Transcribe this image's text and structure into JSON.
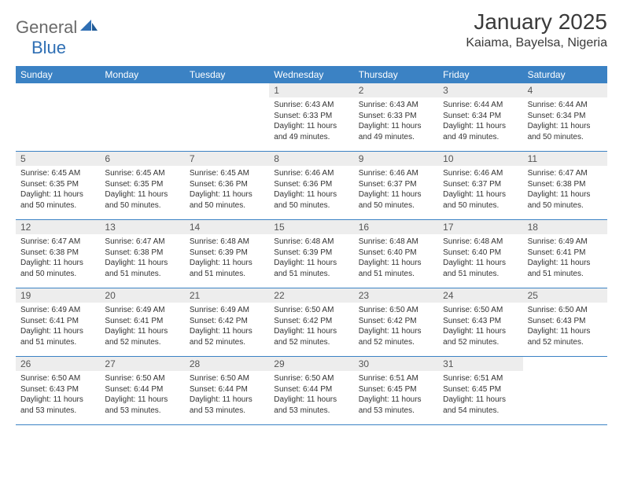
{
  "logo": {
    "general": "General",
    "blue": "Blue"
  },
  "title": "January 2025",
  "location": "Kaiama, Bayelsa, Nigeria",
  "colors": {
    "header_bg": "#3b82c4",
    "header_text": "#ffffff",
    "daynum_bg": "#ededed",
    "text": "#333333",
    "logo_gray": "#6a6a6a",
    "logo_blue": "#2f6fb4"
  },
  "weekdays": [
    "Sunday",
    "Monday",
    "Tuesday",
    "Wednesday",
    "Thursday",
    "Friday",
    "Saturday"
  ],
  "weeks": [
    [
      {
        "day": "",
        "lines": []
      },
      {
        "day": "",
        "lines": []
      },
      {
        "day": "",
        "lines": []
      },
      {
        "day": "1",
        "lines": [
          "Sunrise: 6:43 AM",
          "Sunset: 6:33 PM",
          "Daylight: 11 hours and 49 minutes."
        ]
      },
      {
        "day": "2",
        "lines": [
          "Sunrise: 6:43 AM",
          "Sunset: 6:33 PM",
          "Daylight: 11 hours and 49 minutes."
        ]
      },
      {
        "day": "3",
        "lines": [
          "Sunrise: 6:44 AM",
          "Sunset: 6:34 PM",
          "Daylight: 11 hours and 49 minutes."
        ]
      },
      {
        "day": "4",
        "lines": [
          "Sunrise: 6:44 AM",
          "Sunset: 6:34 PM",
          "Daylight: 11 hours and 50 minutes."
        ]
      }
    ],
    [
      {
        "day": "5",
        "lines": [
          "Sunrise: 6:45 AM",
          "Sunset: 6:35 PM",
          "Daylight: 11 hours and 50 minutes."
        ]
      },
      {
        "day": "6",
        "lines": [
          "Sunrise: 6:45 AM",
          "Sunset: 6:35 PM",
          "Daylight: 11 hours and 50 minutes."
        ]
      },
      {
        "day": "7",
        "lines": [
          "Sunrise: 6:45 AM",
          "Sunset: 6:36 PM",
          "Daylight: 11 hours and 50 minutes."
        ]
      },
      {
        "day": "8",
        "lines": [
          "Sunrise: 6:46 AM",
          "Sunset: 6:36 PM",
          "Daylight: 11 hours and 50 minutes."
        ]
      },
      {
        "day": "9",
        "lines": [
          "Sunrise: 6:46 AM",
          "Sunset: 6:37 PM",
          "Daylight: 11 hours and 50 minutes."
        ]
      },
      {
        "day": "10",
        "lines": [
          "Sunrise: 6:46 AM",
          "Sunset: 6:37 PM",
          "Daylight: 11 hours and 50 minutes."
        ]
      },
      {
        "day": "11",
        "lines": [
          "Sunrise: 6:47 AM",
          "Sunset: 6:38 PM",
          "Daylight: 11 hours and 50 minutes."
        ]
      }
    ],
    [
      {
        "day": "12",
        "lines": [
          "Sunrise: 6:47 AM",
          "Sunset: 6:38 PM",
          "Daylight: 11 hours and 50 minutes."
        ]
      },
      {
        "day": "13",
        "lines": [
          "Sunrise: 6:47 AM",
          "Sunset: 6:38 PM",
          "Daylight: 11 hours and 51 minutes."
        ]
      },
      {
        "day": "14",
        "lines": [
          "Sunrise: 6:48 AM",
          "Sunset: 6:39 PM",
          "Daylight: 11 hours and 51 minutes."
        ]
      },
      {
        "day": "15",
        "lines": [
          "Sunrise: 6:48 AM",
          "Sunset: 6:39 PM",
          "Daylight: 11 hours and 51 minutes."
        ]
      },
      {
        "day": "16",
        "lines": [
          "Sunrise: 6:48 AM",
          "Sunset: 6:40 PM",
          "Daylight: 11 hours and 51 minutes."
        ]
      },
      {
        "day": "17",
        "lines": [
          "Sunrise: 6:48 AM",
          "Sunset: 6:40 PM",
          "Daylight: 11 hours and 51 minutes."
        ]
      },
      {
        "day": "18",
        "lines": [
          "Sunrise: 6:49 AM",
          "Sunset: 6:41 PM",
          "Daylight: 11 hours and 51 minutes."
        ]
      }
    ],
    [
      {
        "day": "19",
        "lines": [
          "Sunrise: 6:49 AM",
          "Sunset: 6:41 PM",
          "Daylight: 11 hours and 51 minutes."
        ]
      },
      {
        "day": "20",
        "lines": [
          "Sunrise: 6:49 AM",
          "Sunset: 6:41 PM",
          "Daylight: 11 hours and 52 minutes."
        ]
      },
      {
        "day": "21",
        "lines": [
          "Sunrise: 6:49 AM",
          "Sunset: 6:42 PM",
          "Daylight: 11 hours and 52 minutes."
        ]
      },
      {
        "day": "22",
        "lines": [
          "Sunrise: 6:50 AM",
          "Sunset: 6:42 PM",
          "Daylight: 11 hours and 52 minutes."
        ]
      },
      {
        "day": "23",
        "lines": [
          "Sunrise: 6:50 AM",
          "Sunset: 6:42 PM",
          "Daylight: 11 hours and 52 minutes."
        ]
      },
      {
        "day": "24",
        "lines": [
          "Sunrise: 6:50 AM",
          "Sunset: 6:43 PM",
          "Daylight: 11 hours and 52 minutes."
        ]
      },
      {
        "day": "25",
        "lines": [
          "Sunrise: 6:50 AM",
          "Sunset: 6:43 PM",
          "Daylight: 11 hours and 52 minutes."
        ]
      }
    ],
    [
      {
        "day": "26",
        "lines": [
          "Sunrise: 6:50 AM",
          "Sunset: 6:43 PM",
          "Daylight: 11 hours and 53 minutes."
        ]
      },
      {
        "day": "27",
        "lines": [
          "Sunrise: 6:50 AM",
          "Sunset: 6:44 PM",
          "Daylight: 11 hours and 53 minutes."
        ]
      },
      {
        "day": "28",
        "lines": [
          "Sunrise: 6:50 AM",
          "Sunset: 6:44 PM",
          "Daylight: 11 hours and 53 minutes."
        ]
      },
      {
        "day": "29",
        "lines": [
          "Sunrise: 6:50 AM",
          "Sunset: 6:44 PM",
          "Daylight: 11 hours and 53 minutes."
        ]
      },
      {
        "day": "30",
        "lines": [
          "Sunrise: 6:51 AM",
          "Sunset: 6:45 PM",
          "Daylight: 11 hours and 53 minutes."
        ]
      },
      {
        "day": "31",
        "lines": [
          "Sunrise: 6:51 AM",
          "Sunset: 6:45 PM",
          "Daylight: 11 hours and 54 minutes."
        ]
      },
      {
        "day": "",
        "lines": []
      }
    ]
  ]
}
